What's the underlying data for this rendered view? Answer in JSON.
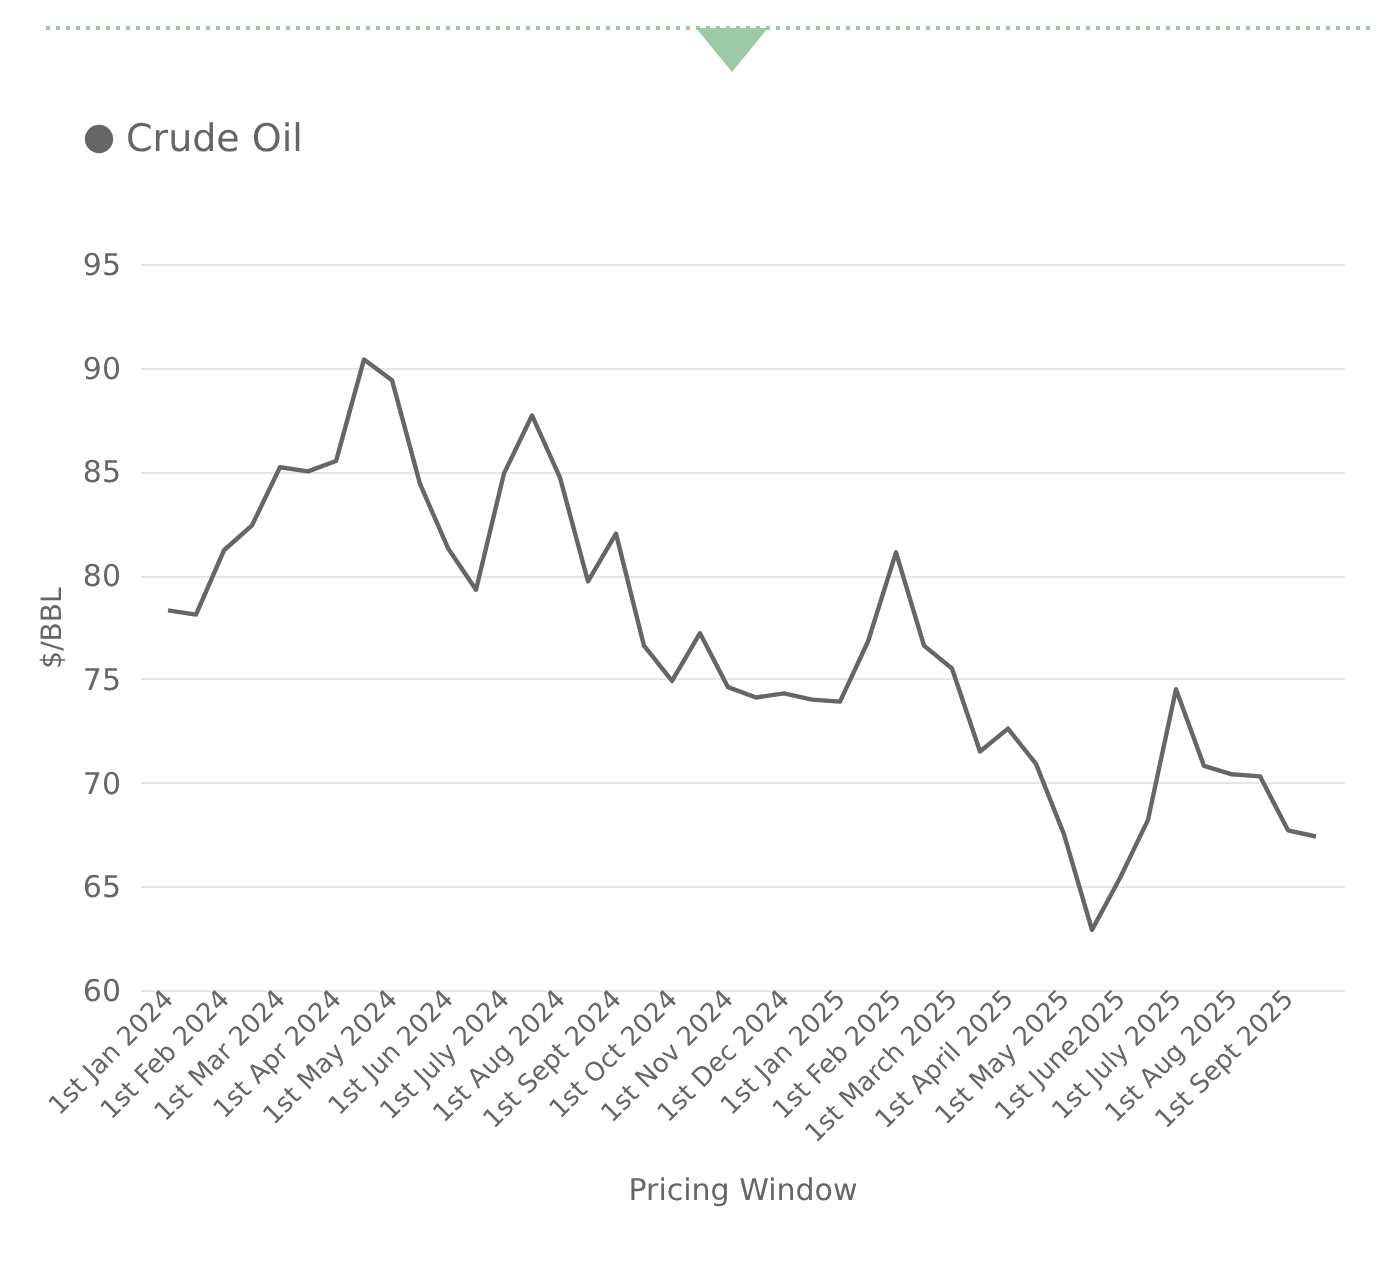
{
  "chart_data": {
    "type": "line",
    "xlabel": "Pricing Window",
    "ylabel": "$/BBL",
    "categories": [
      "1st Jan 2024",
      null,
      "1st Feb 2024",
      null,
      "1st Mar 2024",
      null,
      "1st Apr 2024",
      null,
      "1st May 2024",
      null,
      "1st Jun 2024",
      null,
      "1st July 2024",
      null,
      "1st Aug 2024",
      null,
      "1st Sept 2024",
      null,
      "1st Oct 2024",
      null,
      "1st Nov 2024",
      null,
      "1st Dec 2024",
      null,
      "1st Jan 2025",
      null,
      "1st Feb 2025",
      null,
      "1st March 2025",
      null,
      "1st April 2025",
      null,
      "1st May 2025",
      null,
      "1st June2025",
      null,
      "1st July 2025",
      null,
      "1st Aug 2025",
      null,
      "1st Sept 2025",
      null
    ],
    "series": [
      {
        "name": "Crude Oil",
        "color": "#666666",
        "values": [
          78.3,
          78.1,
          81.2,
          82.4,
          85.2,
          85.0,
          85.5,
          90.4,
          89.4,
          84.4,
          81.3,
          79.3,
          84.9,
          87.7,
          84.7,
          79.7,
          82.0,
          76.6,
          74.9,
          77.2,
          74.6,
          74.1,
          74.3,
          74.0,
          73.9,
          76.8,
          81.1,
          76.6,
          75.5,
          71.5,
          72.6,
          70.9,
          67.5,
          62.9,
          65.4,
          68.2,
          74.5,
          70.8,
          70.4,
          70.3,
          67.7,
          67.4
        ]
      }
    ],
    "ylim": [
      60,
      95
    ],
    "yticks": [
      60,
      65,
      70,
      75,
      80,
      85,
      90,
      95
    ],
    "grid": "y",
    "legend": "top left",
    "marker": "none",
    "line_style": "solid"
  }
}
